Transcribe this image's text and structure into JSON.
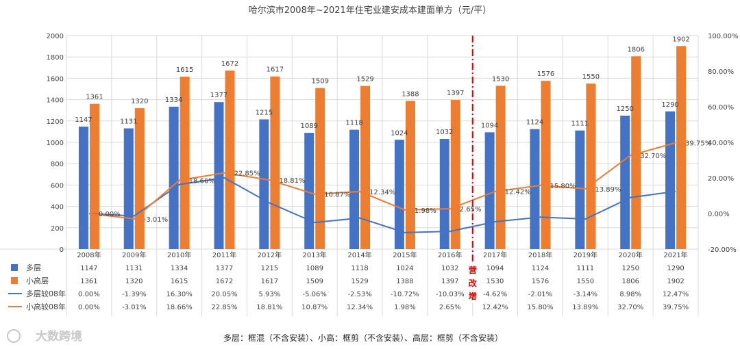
{
  "colors": {
    "duoceng": "#4472C4",
    "xiaogao": "#ED7D31",
    "grid": "#d9d9d9",
    "marker": "#e00000"
  },
  "chart_data": {
    "type": "bar",
    "title": "哈尔滨市2008年~2021年住宅业建安成本建面单方（元/平）",
    "categories": [
      "2008年",
      "2009年",
      "2010年",
      "2011年",
      "2012年",
      "2013年",
      "2014年",
      "2015年",
      "2016年",
      "2017年",
      "2018年",
      "2019年",
      "2020年",
      "2021年"
    ],
    "y_left": {
      "range": [
        0,
        2000
      ],
      "ticks": [
        "0",
        "200",
        "400",
        "600",
        "800",
        "1000",
        "1200",
        "1400",
        "1600",
        "1800",
        "2000"
      ]
    },
    "y_right": {
      "range": [
        -20,
        100
      ],
      "ticks": [
        "-20.00%",
        "0.00%",
        "20.00%",
        "40.00%",
        "60.00%",
        "80.00%",
        "100.00%"
      ]
    },
    "grid": true,
    "series": [
      {
        "name": "多层",
        "kind": "bar",
        "values": [
          1147,
          1131,
          1334,
          1377,
          1215,
          1089,
          1118,
          1024,
          1032,
          1094,
          1124,
          1111,
          1250,
          1290
        ]
      },
      {
        "name": "小高层",
        "kind": "bar",
        "values": [
          1361,
          1320,
          1615,
          1672,
          1617,
          1509,
          1529,
          1388,
          1397,
          1530,
          1576,
          1550,
          1806,
          1902
        ]
      },
      {
        "name": "多层较08年",
        "kind": "line",
        "axis": "right",
        "values": [
          0.0,
          -1.39,
          16.3,
          20.05,
          5.93,
          -5.06,
          -2.53,
          -10.72,
          -10.03,
          -4.62,
          -2.01,
          -3.14,
          8.98,
          12.47
        ],
        "labels": [
          "0.00%",
          "-1.39%",
          "16.30%",
          "20.05%",
          "5.93%",
          "-5.06%",
          "-2.53%",
          "-10.72%",
          "-10.03%",
          "-4.62%",
          "-2.01%",
          "-3.14%",
          "8.98%",
          "12.47%"
        ]
      },
      {
        "name": "小高较08年",
        "kind": "line",
        "axis": "right",
        "values": [
          0.0,
          -3.01,
          18.66,
          22.85,
          18.81,
          10.87,
          12.34,
          1.98,
          2.65,
          12.42,
          15.8,
          13.89,
          32.7,
          39.75
        ],
        "labels": [
          "0.00%",
          "-3.01%",
          "18.66%",
          "22.85%",
          "18.81%",
          "10.87%",
          "12.34%",
          "1.98%",
          "2.65%",
          "12.42%",
          "15.80%",
          "13.89%",
          "32.70%",
          "39.75%"
        ]
      }
    ],
    "annotation": {
      "text": "营改增",
      "position": "between 2016年 and 2017年"
    }
  },
  "footnote": "多层：框混（不含安装）、小高：框剪（不含安装）、高层：框剪（不含安装）",
  "watermark": "大数跨境"
}
